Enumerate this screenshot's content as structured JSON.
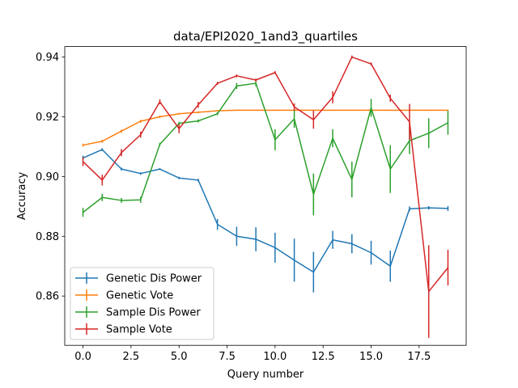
{
  "chart_data": {
    "type": "line",
    "title": "data/EPI2020_1and3_quartiles",
    "xlabel": "Query number",
    "ylabel": "Accuracy",
    "xlim": [
      -0.95,
      19.95
    ],
    "ylim": [
      0.8435,
      0.9435
    ],
    "xticks": [
      0.0,
      2.5,
      5.0,
      7.5,
      10.0,
      12.5,
      15.0,
      17.5
    ],
    "xtick_labels": [
      "0.0",
      "2.5",
      "5.0",
      "7.5",
      "10.0",
      "12.5",
      "15.0",
      "17.5"
    ],
    "yticks": [
      0.86,
      0.88,
      0.9,
      0.92,
      0.94
    ],
    "ytick_labels": [
      "0.86",
      "0.88",
      "0.90",
      "0.92",
      "0.94"
    ],
    "grid": false,
    "legend_position": "lower-left",
    "x": [
      0,
      1,
      2,
      3,
      4,
      5,
      6,
      7,
      8,
      9,
      10,
      11,
      12,
      13,
      14,
      15,
      16,
      17,
      18,
      19
    ],
    "series": [
      {
        "name": "Genetic Dis Power",
        "color": "#1f77b4",
        "values": [
          0.9062,
          0.909,
          0.9025,
          0.901,
          0.9025,
          0.8995,
          0.8988,
          0.884,
          0.88,
          0.879,
          0.8762,
          0.872,
          0.868,
          0.8788,
          0.8775,
          0.8745,
          0.87,
          0.8892,
          0.8895,
          0.8893
        ],
        "errors": [
          0.0008,
          0.0005,
          0.0005,
          0.0004,
          0.0003,
          0.0004,
          0.0005,
          0.0018,
          0.0032,
          0.004,
          0.005,
          0.0072,
          0.0068,
          0.003,
          0.0032,
          0.004,
          0.0052,
          0.0008,
          0.0006,
          0.0008
        ]
      },
      {
        "name": "Genetic Vote",
        "color": "#ff7f0e",
        "values": [
          0.9105,
          0.9118,
          0.9152,
          0.9185,
          0.92,
          0.921,
          0.9215,
          0.922,
          0.9222,
          0.9222,
          0.9222,
          0.9222,
          0.9222,
          0.9222,
          0.9222,
          0.9222,
          0.9222,
          0.9222,
          0.9222,
          0.9222
        ],
        "errors": [
          0.0005,
          0.0005,
          0.0005,
          0.0005,
          0.0004,
          0.0003,
          0.0003,
          0.0002,
          0.0002,
          0.0002,
          0.0002,
          0.0002,
          0.0002,
          0.0002,
          0.0002,
          0.0002,
          0.0002,
          0.0002,
          0.0002,
          0.0002
        ]
      },
      {
        "name": "Sample Dis Power",
        "color": "#2ca02c",
        "values": [
          0.888,
          0.893,
          0.892,
          0.8922,
          0.9108,
          0.9178,
          0.9186,
          0.921,
          0.9303,
          0.9312,
          0.9123,
          0.9193,
          0.894,
          0.9128,
          0.899,
          0.923,
          0.9025,
          0.912,
          0.9145,
          0.918
        ],
        "errors": [
          0.0015,
          0.0012,
          0.0008,
          0.001,
          0.0005,
          0.0005,
          0.0005,
          0.0005,
          0.001,
          0.001,
          0.0035,
          0.003,
          0.007,
          0.003,
          0.006,
          0.003,
          0.008,
          0.0045,
          0.005,
          0.004
        ]
      },
      {
        "name": "Sample Vote",
        "color": "#d62728",
        "values": [
          0.905,
          0.8988,
          0.908,
          0.914,
          0.925,
          0.916,
          0.924,
          0.9312,
          0.9337,
          0.9323,
          0.9348,
          0.9233,
          0.919,
          0.9265,
          0.94,
          0.9377,
          0.9262,
          0.9183,
          0.8615,
          0.8695
        ],
        "errors": [
          0.0015,
          0.0018,
          0.0012,
          0.001,
          0.0008,
          0.0015,
          0.001,
          0.0005,
          0.0005,
          0.0005,
          0.0005,
          0.0012,
          0.003,
          0.002,
          0.0005,
          0.0005,
          0.0012,
          0.006,
          0.0155,
          0.006
        ]
      }
    ]
  }
}
